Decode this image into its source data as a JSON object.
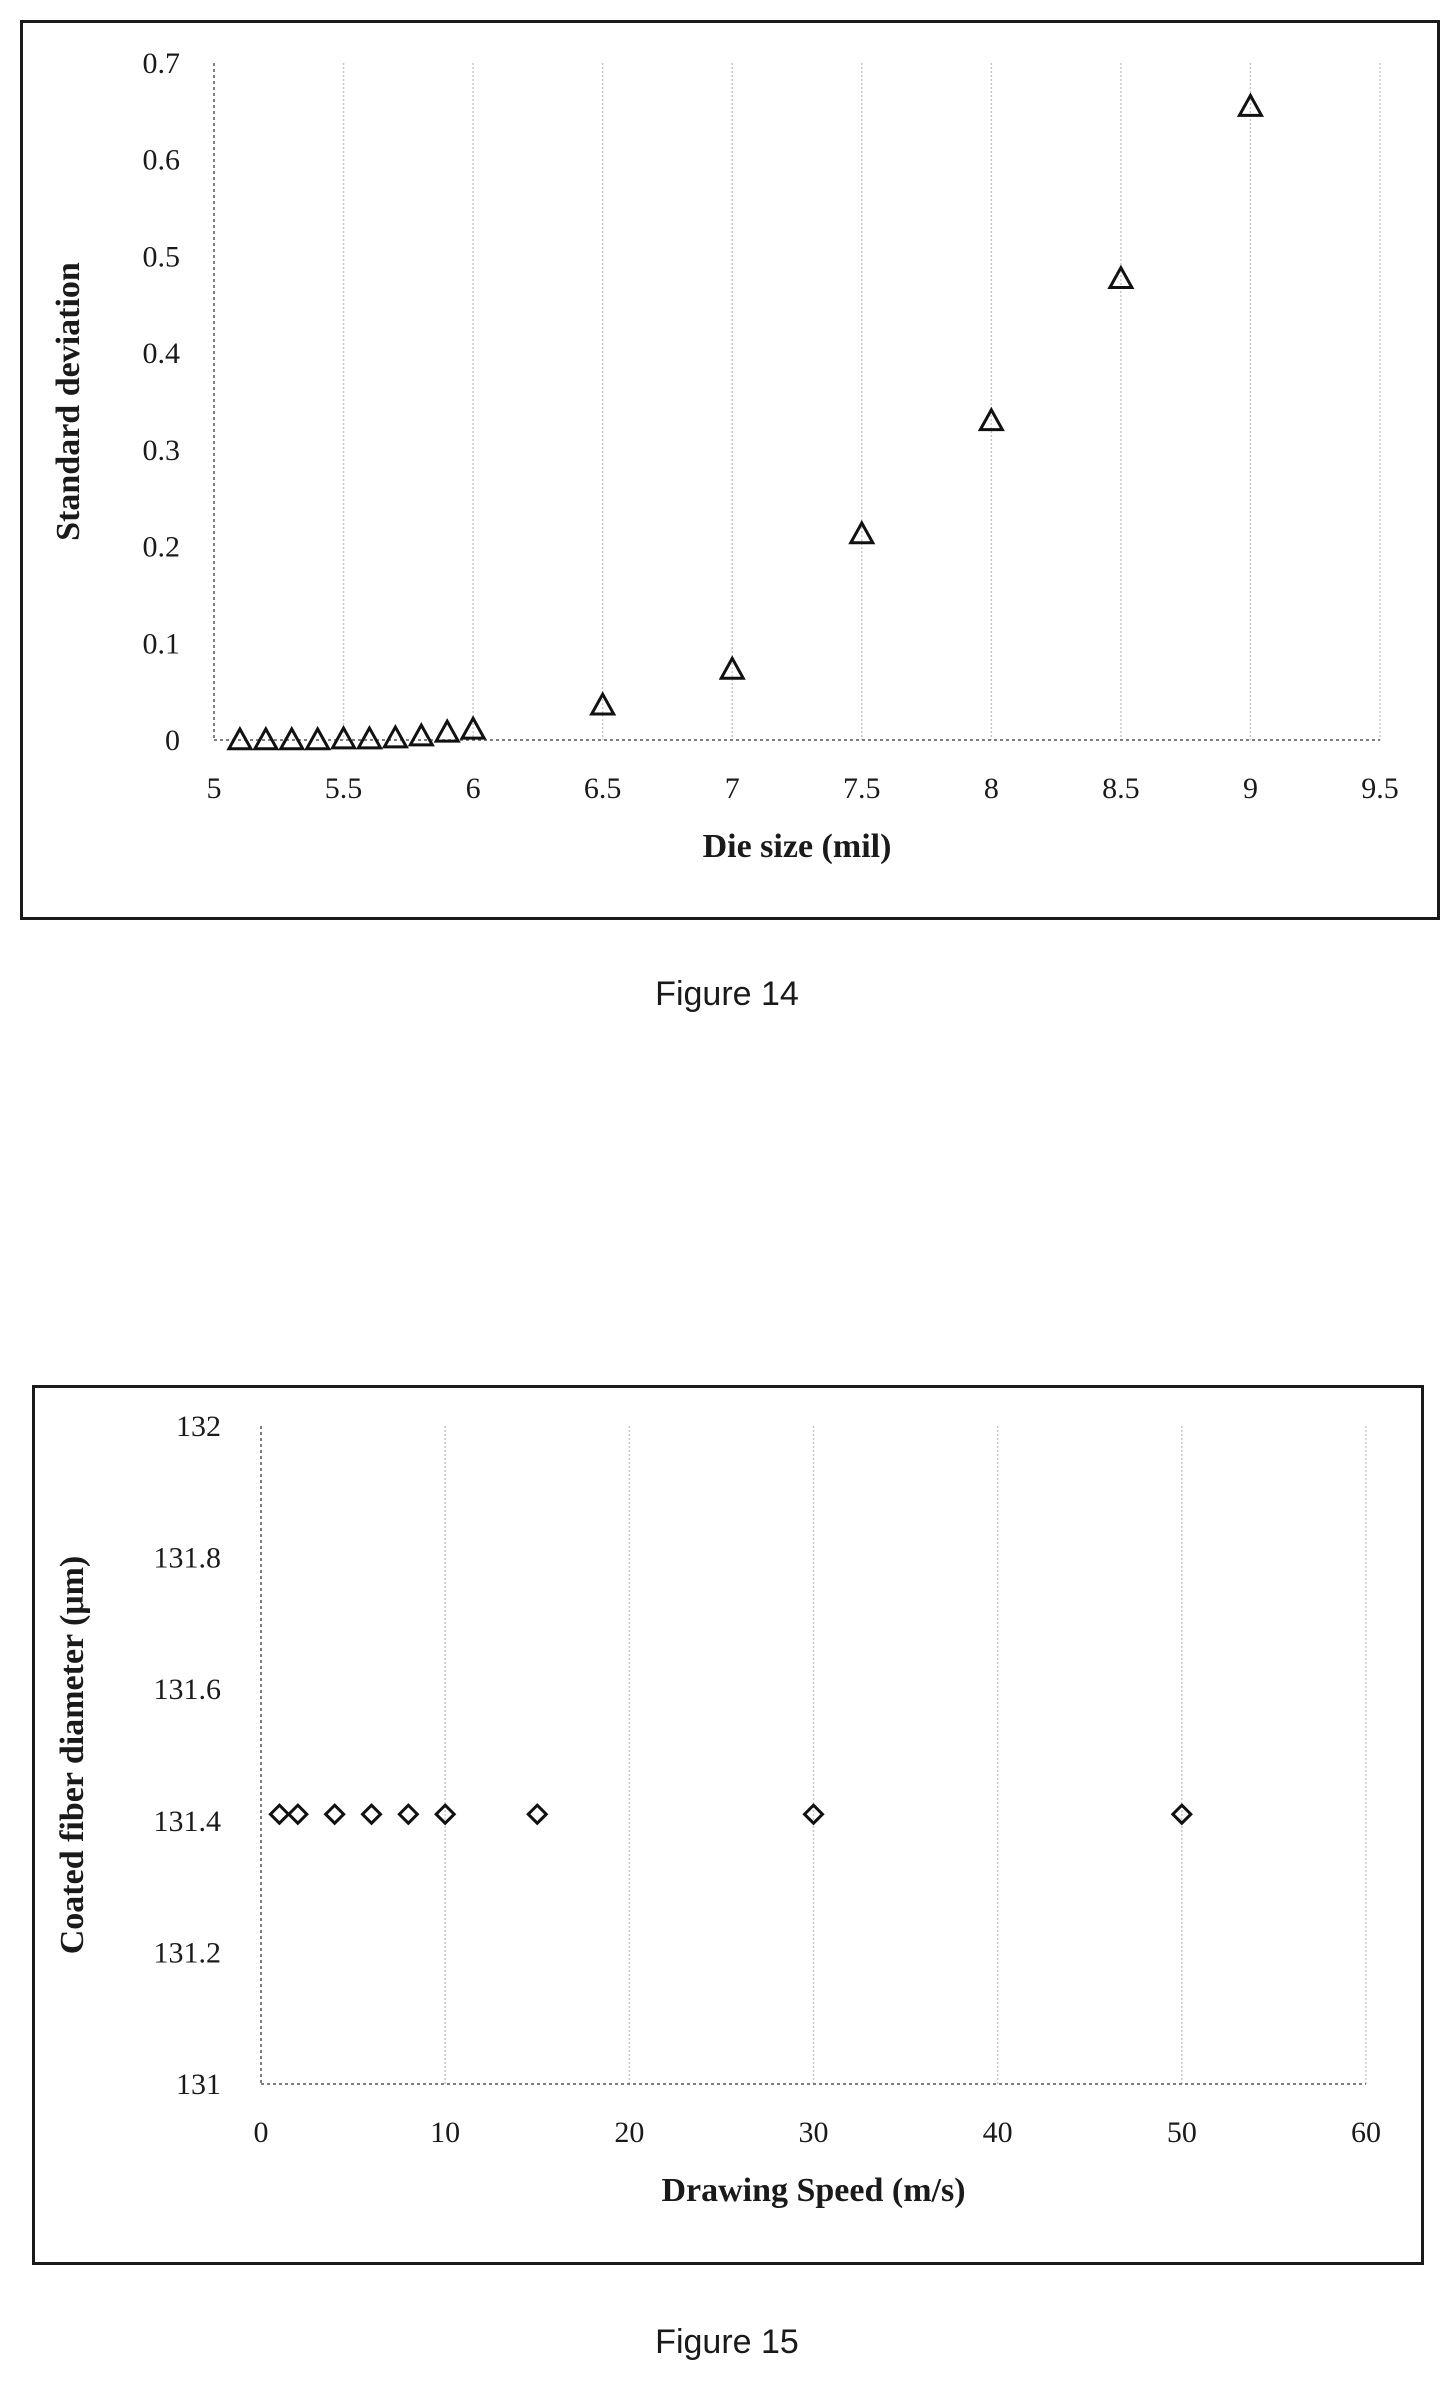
{
  "figures": [
    {
      "caption": "Figure 14"
    },
    {
      "caption": "Figure 15"
    }
  ],
  "chart_data": [
    {
      "type": "scatter",
      "xlabel": "Die size (mil)",
      "ylabel": "Standard deviation",
      "xlim": [
        5,
        9.5
      ],
      "ylim": [
        0,
        0.7
      ],
      "xticks": [
        "5",
        "5.5",
        "6",
        "6.5",
        "7",
        "7.5",
        "8",
        "8.5",
        "9",
        "9.5"
      ],
      "yticks": [
        "0",
        "0.1",
        "0.2",
        "0.3",
        "0.4",
        "0.5",
        "0.6",
        "0.7"
      ],
      "grid": "vertical",
      "marker": "triangle",
      "x": [
        5.1,
        5.2,
        5.3,
        5.4,
        5.5,
        5.6,
        5.7,
        5.8,
        5.9,
        6.0,
        6.5,
        7.0,
        7.5,
        8.0,
        8.5,
        9.0
      ],
      "y": [
        0.0,
        0.0,
        0.0,
        0.0,
        0.001,
        0.001,
        0.002,
        0.004,
        0.008,
        0.011,
        0.036,
        0.073,
        0.213,
        0.33,
        0.477,
        0.655
      ]
    },
    {
      "type": "scatter",
      "xlabel": "Drawing Speed (m/s)",
      "ylabel": "Coated  fiber diameter (μm)",
      "xlim": [
        0,
        60
      ],
      "ylim": [
        131,
        132
      ],
      "xticks": [
        "0",
        "10",
        "20",
        "30",
        "40",
        "50",
        "60"
      ],
      "yticks": [
        "131",
        "131.2",
        "131.4",
        "131.6",
        "131.8",
        "132"
      ],
      "grid": "vertical",
      "marker": "diamond",
      "x": [
        1,
        2,
        4,
        6,
        8,
        10,
        15,
        30,
        50
      ],
      "y": [
        131.41,
        131.41,
        131.41,
        131.41,
        131.41,
        131.41,
        131.41,
        131.41,
        131.41
      ]
    }
  ]
}
